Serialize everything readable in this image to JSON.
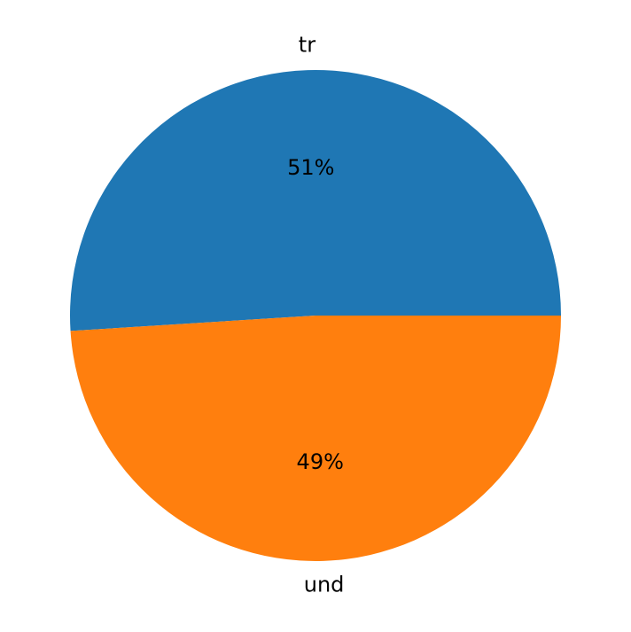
{
  "chart_data": {
    "type": "pie",
    "categories": [
      "tr",
      "und"
    ],
    "values": [
      51,
      49
    ],
    "value_labels": [
      "51%",
      "49%"
    ],
    "colors": [
      "#1f77b4",
      "#ff7f0e"
    ]
  }
}
